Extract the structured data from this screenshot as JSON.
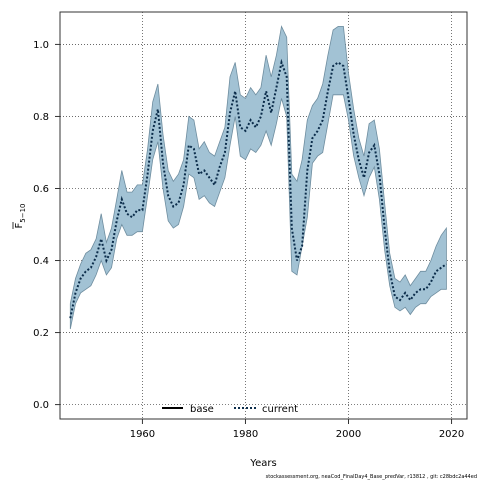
{
  "chart_data": {
    "type": "line",
    "xlabel": "Years",
    "ylabel_main": "F",
    "ylabel_sub": "5−10",
    "xlim": [
      1944,
      2023
    ],
    "ylim": [
      -0.04,
      1.09
    ],
    "xticks": [
      1960,
      1980,
      2000,
      2020
    ],
    "yticks": [
      0.0,
      0.2,
      0.4,
      0.6,
      0.8,
      1.0
    ],
    "ytick_labels": [
      "0.0",
      "0.2",
      "0.4",
      "0.6",
      "0.8",
      "1.0"
    ],
    "grid": true,
    "legend": {
      "placement": "bottom-center",
      "entries": [
        {
          "label": "base",
          "style": "solid",
          "color": "#000000"
        },
        {
          "label": "current",
          "style": "dotted",
          "color": "#0b2c4a"
        }
      ]
    },
    "x": [
      1946,
      1947,
      1948,
      1949,
      1950,
      1951,
      1952,
      1953,
      1954,
      1955,
      1956,
      1957,
      1958,
      1959,
      1960,
      1961,
      1962,
      1963,
      1964,
      1965,
      1966,
      1967,
      1968,
      1969,
      1970,
      1971,
      1972,
      1973,
      1974,
      1975,
      1976,
      1977,
      1978,
      1979,
      1980,
      1981,
      1982,
      1983,
      1984,
      1985,
      1986,
      1987,
      1988,
      1989,
      1990,
      1991,
      1992,
      1993,
      1994,
      1995,
      1996,
      1997,
      1998,
      1999,
      2000,
      2001,
      2002,
      2003,
      2004,
      2005,
      2006,
      2007,
      2008,
      2009,
      2010,
      2011,
      2012,
      2013,
      2014,
      2015,
      2016,
      2017,
      2018,
      2019
    ],
    "series": [
      {
        "name": "current",
        "color": "#0b2c4a",
        "lower": [
          0.21,
          0.28,
          0.31,
          0.32,
          0.33,
          0.36,
          0.4,
          0.36,
          0.38,
          0.46,
          0.5,
          0.47,
          0.47,
          0.48,
          0.48,
          0.58,
          0.68,
          0.73,
          0.6,
          0.51,
          0.49,
          0.5,
          0.55,
          0.64,
          0.63,
          0.57,
          0.58,
          0.56,
          0.55,
          0.59,
          0.63,
          0.72,
          0.8,
          0.69,
          0.68,
          0.71,
          0.7,
          0.72,
          0.76,
          0.72,
          0.78,
          0.85,
          0.8,
          0.37,
          0.36,
          0.44,
          0.52,
          0.67,
          0.69,
          0.7,
          0.78,
          0.86,
          0.86,
          0.86,
          0.79,
          0.69,
          0.63,
          0.58,
          0.63,
          0.66,
          0.57,
          0.43,
          0.33,
          0.27,
          0.26,
          0.27,
          0.25,
          0.27,
          0.28,
          0.28,
          0.3,
          0.31,
          0.32,
          0.32
        ],
        "upper": [
          0.28,
          0.35,
          0.39,
          0.42,
          0.43,
          0.46,
          0.53,
          0.45,
          0.49,
          0.57,
          0.65,
          0.59,
          0.59,
          0.61,
          0.61,
          0.71,
          0.84,
          0.89,
          0.75,
          0.65,
          0.62,
          0.64,
          0.68,
          0.8,
          0.79,
          0.71,
          0.73,
          0.7,
          0.69,
          0.73,
          0.77,
          0.91,
          0.95,
          0.86,
          0.85,
          0.88,
          0.86,
          0.88,
          0.97,
          0.91,
          0.97,
          1.05,
          1.02,
          0.64,
          0.62,
          0.68,
          0.79,
          0.83,
          0.85,
          0.89,
          0.97,
          1.04,
          1.05,
          1.05,
          0.92,
          0.82,
          0.74,
          0.69,
          0.78,
          0.79,
          0.71,
          0.56,
          0.42,
          0.35,
          0.34,
          0.36,
          0.33,
          0.35,
          0.37,
          0.37,
          0.4,
          0.44,
          0.47,
          0.49
        ],
        "values": [
          0.24,
          0.31,
          0.35,
          0.37,
          0.38,
          0.41,
          0.46,
          0.4,
          0.43,
          0.51,
          0.57,
          0.53,
          0.52,
          0.54,
          0.54,
          0.64,
          0.76,
          0.82,
          0.67,
          0.58,
          0.55,
          0.56,
          0.61,
          0.72,
          0.71,
          0.64,
          0.65,
          0.63,
          0.61,
          0.66,
          0.7,
          0.81,
          0.87,
          0.77,
          0.76,
          0.79,
          0.77,
          0.8,
          0.87,
          0.81,
          0.88,
          0.95,
          0.91,
          0.49,
          0.4,
          0.44,
          0.65,
          0.74,
          0.76,
          0.79,
          0.87,
          0.94,
          0.95,
          0.94,
          0.85,
          0.75,
          0.68,
          0.63,
          0.7,
          0.72,
          0.64,
          0.49,
          0.37,
          0.3,
          0.29,
          0.31,
          0.29,
          0.31,
          0.32,
          0.32,
          0.34,
          0.37,
          0.38,
          0.39
        ]
      }
    ]
  },
  "footnote": "stockassessment.org, neaCod_FinalDay4_Base_predVar,  r13812 ,  git: c28bdc2a44ed"
}
